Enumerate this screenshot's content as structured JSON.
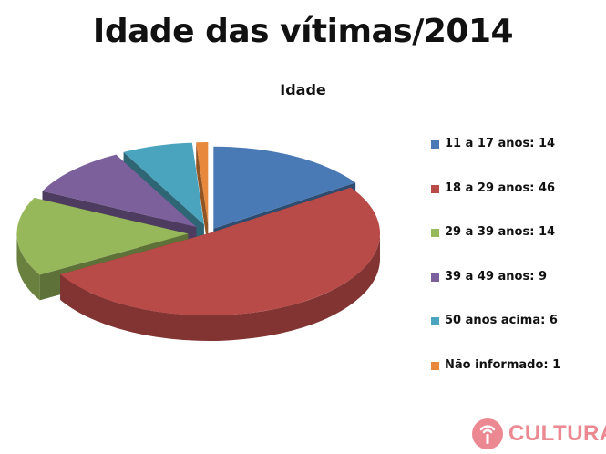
{
  "chart_data": {
    "type": "pie",
    "title": "Idade das vítimas/2014",
    "subtitle": "Idade",
    "legend_position": "right",
    "categories": [
      "11 a 17 anos",
      "18 a 29 anos",
      "29 a 39 anos",
      "39 a 49 anos",
      "50 anos acima",
      "Não informado"
    ],
    "values": [
      14,
      46,
      14,
      9,
      6,
      1
    ],
    "legend_labels": [
      "11 a 17 anos: 14",
      "18 a 29 anos: 46",
      "29 a 39 anos: 14",
      "39 a 49 anos: 9",
      "50 anos acima: 6",
      "Não informado: 1"
    ],
    "colors": [
      "#4a7ab5",
      "#b84a48",
      "#96b75a",
      "#7c609b",
      "#4aa4bd",
      "#e8883c"
    ],
    "style": "3d-exploded"
  },
  "watermark": {
    "text": "CULTURA",
    "color": "#e8747e",
    "icon": "radio-signal-icon"
  }
}
